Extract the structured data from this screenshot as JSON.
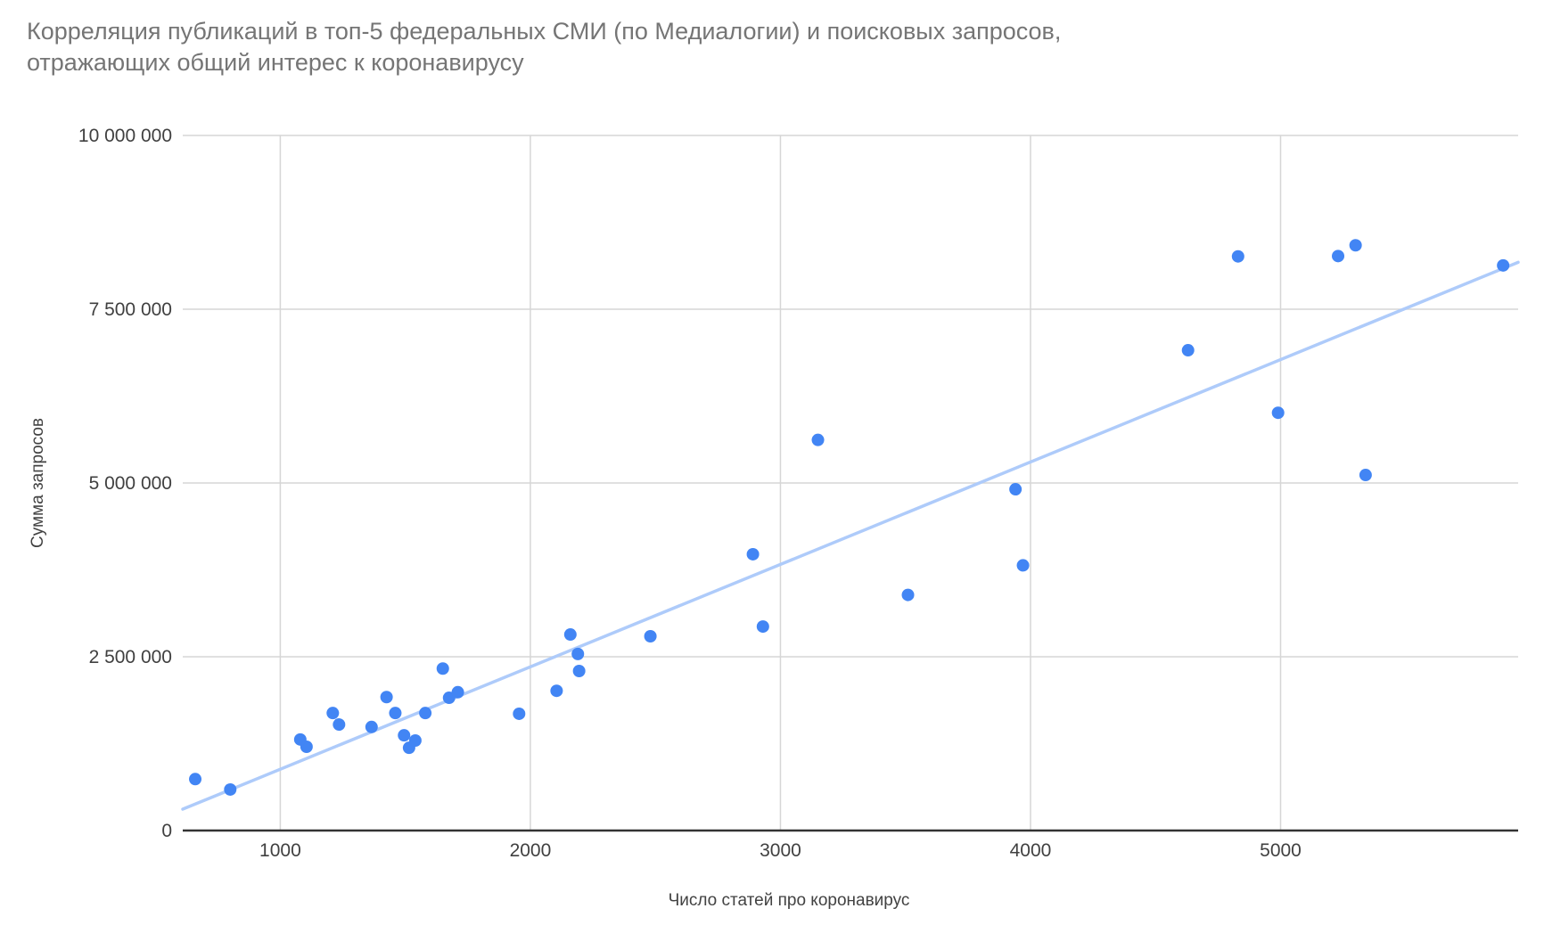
{
  "title": {
    "line1": "Корреляция публикаций в топ-5 федеральных СМИ (по Медиалогии) и поисковых запросов,",
    "line2": "отражающих общий интерес к коронавирусу"
  },
  "chart_data": {
    "type": "scatter",
    "title": "Корреляция публикаций в топ-5 федеральных СМИ (по Медиалогии) и поисковых запросов, отражающих общий интерес к коронавирусу",
    "xlabel": "Число статей про коронавирус",
    "ylabel": "Сумма запросов",
    "xlim": [
      610,
      5950
    ],
    "ylim": [
      0,
      10000000
    ],
    "grid": true,
    "legend": "none",
    "x_ticks": [
      {
        "value": 1000,
        "label": "1000"
      },
      {
        "value": 2000,
        "label": "2000"
      },
      {
        "value": 3000,
        "label": "3000"
      },
      {
        "value": 4000,
        "label": "4000"
      },
      {
        "value": 5000,
        "label": "5000"
      }
    ],
    "y_ticks": [
      {
        "value": 0,
        "label": "0"
      },
      {
        "value": 2500000,
        "label": "2 500 000"
      },
      {
        "value": 5000000,
        "label": "5 000 000"
      },
      {
        "value": 7500000,
        "label": "7 500 000"
      },
      {
        "value": 10000000,
        "label": "10 000 000"
      }
    ],
    "series": [
      {
        "name": "Сумма запросов",
        "points": [
          [
            660,
            740000
          ],
          [
            800,
            590000
          ],
          [
            1080,
            1310000
          ],
          [
            1105,
            1205000
          ],
          [
            1210,
            1690000
          ],
          [
            1235,
            1525000
          ],
          [
            1365,
            1490000
          ],
          [
            1425,
            1920000
          ],
          [
            1460,
            1690000
          ],
          [
            1495,
            1370000
          ],
          [
            1515,
            1190000
          ],
          [
            1540,
            1295000
          ],
          [
            1580,
            1690000
          ],
          [
            1650,
            2330000
          ],
          [
            1675,
            1910000
          ],
          [
            1710,
            1990000
          ],
          [
            1955,
            1680000
          ],
          [
            2105,
            2010000
          ],
          [
            2160,
            2820000
          ],
          [
            2190,
            2540000
          ],
          [
            2195,
            2295000
          ],
          [
            2480,
            2795000
          ],
          [
            2890,
            3975000
          ],
          [
            2930,
            2935000
          ],
          [
            3150,
            5620000
          ],
          [
            3510,
            3390000
          ],
          [
            3940,
            4910000
          ],
          [
            3970,
            3815000
          ],
          [
            4630,
            6910000
          ],
          [
            4830,
            8260000
          ],
          [
            4990,
            6010000
          ],
          [
            5230,
            8265000
          ],
          [
            5300,
            8420000
          ],
          [
            5340,
            5115000
          ],
          [
            5890,
            8130000
          ]
        ]
      }
    ],
    "trendline": {
      "type": "linear",
      "x1": 610,
      "y1": 307000,
      "x2": 5950,
      "y2": 8175000
    },
    "colors": {
      "point": "#4285F4",
      "trendline": "#AECBFA",
      "gridline": "#D6D6D6",
      "axis_line": "#333333",
      "tick_label": "#404040",
      "axis_title": "#424242",
      "title": "#757575",
      "background": "#FFFFFF"
    }
  }
}
